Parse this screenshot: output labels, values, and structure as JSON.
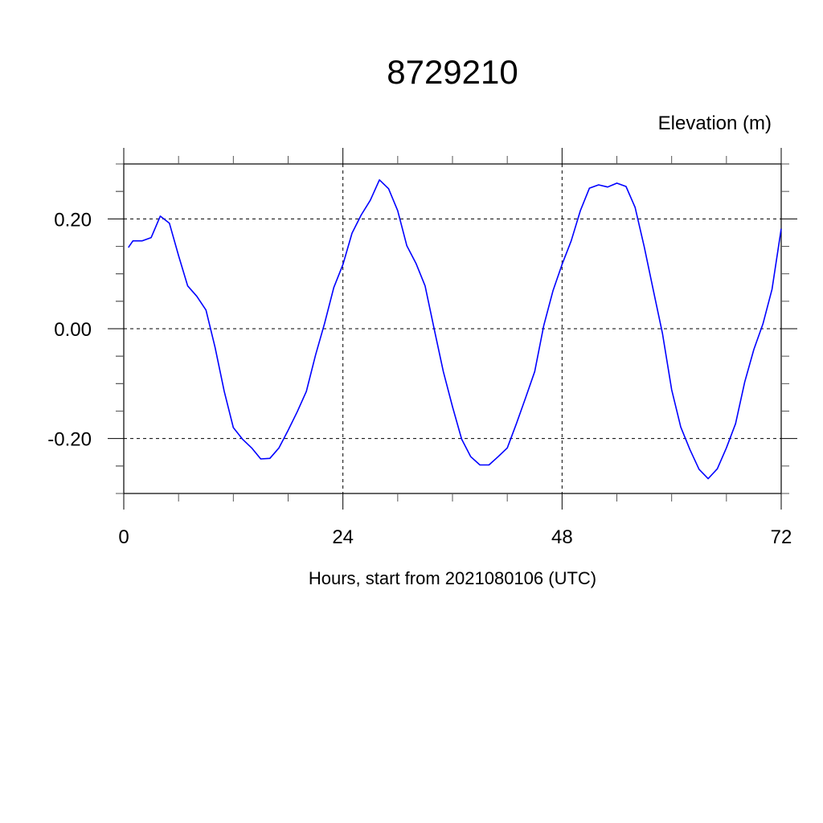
{
  "chart_data": {
    "type": "line",
    "title": "8729210",
    "ylabel": "Elevation (m)",
    "xlabel": "Hours, start from 2021080106 (UTC)",
    "xlim": [
      0,
      72
    ],
    "ylim": [
      -0.3,
      0.3
    ],
    "xticks": [
      0,
      24,
      48,
      72
    ],
    "xtick_labels": [
      "0",
      "24",
      "48",
      "72"
    ],
    "yticks": [
      -0.2,
      0.0,
      0.2
    ],
    "ytick_labels": [
      "-0.20",
      "0.00",
      "0.20"
    ],
    "grid": true,
    "line_color": "#0000ff",
    "x": [
      0.5,
      1,
      2,
      3,
      4,
      5,
      6,
      7,
      8,
      9,
      10,
      11,
      12,
      13,
      14,
      15,
      16,
      17,
      18,
      19,
      20,
      21,
      22,
      23,
      24,
      25,
      26,
      27,
      28,
      29,
      30,
      31,
      32,
      33,
      34,
      35,
      36,
      37,
      38,
      39,
      40,
      41,
      42,
      43,
      44,
      45,
      46,
      47,
      48,
      49,
      50,
      51,
      52,
      53,
      54,
      55,
      56,
      57,
      58,
      59,
      60,
      61,
      62,
      63,
      64,
      65,
      66,
      67,
      68,
      69,
      70,
      71,
      72
    ],
    "y": [
      0.148,
      0.16,
      0.16,
      0.166,
      0.205,
      0.192,
      0.133,
      0.078,
      0.059,
      0.034,
      -0.034,
      -0.114,
      -0.18,
      -0.201,
      -0.217,
      -0.237,
      -0.236,
      -0.217,
      -0.185,
      -0.151,
      -0.114,
      -0.048,
      0.01,
      0.075,
      0.117,
      0.174,
      0.207,
      0.234,
      0.271,
      0.255,
      0.215,
      0.151,
      0.119,
      0.078,
      -0.001,
      -0.078,
      -0.142,
      -0.201,
      -0.233,
      -0.248,
      -0.248,
      -0.233,
      -0.217,
      -0.173,
      -0.126,
      -0.078,
      0.006,
      0.069,
      0.117,
      0.16,
      0.215,
      0.256,
      0.262,
      0.258,
      0.265,
      0.259,
      0.221,
      0.149,
      0.07,
      -0.009,
      -0.111,
      -0.179,
      -0.22,
      -0.256,
      -0.273,
      -0.255,
      -0.217,
      -0.173,
      -0.097,
      -0.038,
      0.009,
      0.072,
      0.182
    ]
  }
}
